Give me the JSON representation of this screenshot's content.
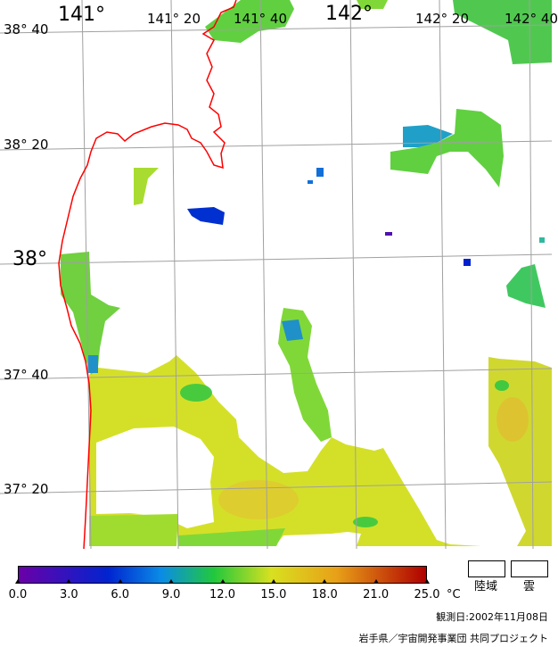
{
  "map": {
    "lon_labels": [
      "141°",
      "141° 20",
      "141° 40",
      "142°",
      "142° 20",
      "142° 40"
    ],
    "lat_labels": [
      "38° 40",
      "38° 20",
      "38°",
      "37° 40",
      "37° 20"
    ]
  },
  "colorbar": {
    "min": 0.0,
    "max": 25.0,
    "ticks": [
      "0.0",
      "3.0",
      "6.0",
      "9.0",
      "12.0",
      "15.0",
      "18.0",
      "21.0",
      "25.0"
    ],
    "unit": "°C",
    "colors": {
      "low": "#6a00a8",
      "cold": "#0024d0",
      "cool": "#0a8ce6",
      "mid": "#22c83c",
      "warm": "#d8e020",
      "hot": "#e8a018",
      "max": "#b00000"
    }
  },
  "legend": {
    "land_label": "陸域",
    "cloud_label": "雲"
  },
  "observation_date": "観測日:2002年11月08日",
  "credit": "岩手県／宇宙開発事業団 共同プロジェクト",
  "coastline_color": "#ff0000",
  "grid_color": "#a0a0a0"
}
